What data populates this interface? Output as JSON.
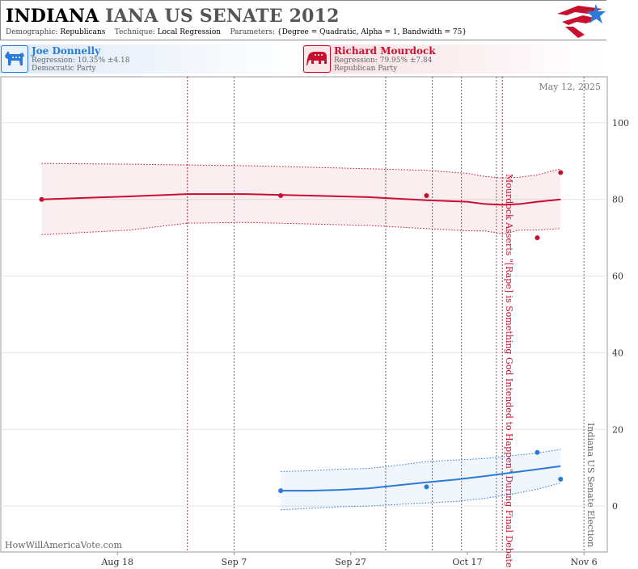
{
  "header": {
    "state": "INDIANA",
    "title_rest": "IANA US SENATE 2012",
    "demographic_label": "Demographic:",
    "demographic_value": "Republicans",
    "technique_label": "Technique:",
    "technique_value": "Local Regression",
    "parameters_label": "Parameters:",
    "parameters_value": "{Degree = Quadratic, Alpha = 1, Bandwidth = 75}",
    "logo": "star-flag-logo"
  },
  "candidates": [
    {
      "name": "Joe Donnelly",
      "regression": "Regression: 10.35% ±4.18",
      "party": "Democratic Party",
      "icon": "donkey-icon",
      "color": "#2a7bd8"
    },
    {
      "name": "Richard Mourdock",
      "regression": "Regression: 79.95% ±7.84",
      "party": "Republican Party",
      "icon": "elephant-icon",
      "color": "#c8102e"
    }
  ],
  "watermark": "HowWillAmericaVote.com",
  "date_stamp": "May 12, 2025",
  "chart_data": {
    "type": "line",
    "x_ticks": [
      "Aug 18",
      "Sep 7",
      "Sep 27",
      "Oct 17",
      "Nov 6"
    ],
    "xlim": [
      "2012-07-29",
      "2012-11-10"
    ],
    "ylim": [
      -12,
      112
    ],
    "y_ticks": [
      0,
      20,
      40,
      60,
      80,
      100
    ],
    "grid": true,
    "series": [
      {
        "name": "Richard Mourdock",
        "color": "#c8102e",
        "points": [
          {
            "x": "2012-08-05",
            "y": 80
          },
          {
            "x": "2012-09-15",
            "y": 81
          },
          {
            "x": "2012-10-10",
            "y": 81
          },
          {
            "x": "2012-10-29",
            "y": 70
          },
          {
            "x": "2012-11-02",
            "y": 87
          }
        ],
        "trend": [
          {
            "x": "2012-08-05",
            "y": 80.0,
            "lo": 70.8,
            "hi": 89.4
          },
          {
            "x": "2012-08-20",
            "y": 80.8,
            "lo": 72.0,
            "hi": 89.2
          },
          {
            "x": "2012-08-30",
            "y": 81.4,
            "lo": 73.8,
            "hi": 89.0
          },
          {
            "x": "2012-09-09",
            "y": 81.4,
            "lo": 74.0,
            "hi": 88.8
          },
          {
            "x": "2012-09-20",
            "y": 81.0,
            "lo": 73.6,
            "hi": 88.4
          },
          {
            "x": "2012-09-30",
            "y": 80.6,
            "lo": 73.2,
            "hi": 88.0
          },
          {
            "x": "2012-10-10",
            "y": 79.8,
            "lo": 72.4,
            "hi": 87.6
          },
          {
            "x": "2012-10-17",
            "y": 79.4,
            "lo": 71.8,
            "hi": 86.8
          },
          {
            "x": "2012-10-20",
            "y": 78.8,
            "lo": 71.8,
            "hi": 86.0
          },
          {
            "x": "2012-10-23",
            "y": 78.6,
            "lo": 71.0,
            "hi": 85.6
          },
          {
            "x": "2012-10-26",
            "y": 78.8,
            "lo": 72.0,
            "hi": 85.8
          },
          {
            "x": "2012-10-29",
            "y": 79.4,
            "lo": 72.0,
            "hi": 86.4
          },
          {
            "x": "2012-11-02",
            "y": 80.0,
            "lo": 72.4,
            "hi": 88.0
          }
        ]
      },
      {
        "name": "Joe Donnelly",
        "color": "#2a7bd8",
        "points": [
          {
            "x": "2012-09-15",
            "y": 4
          },
          {
            "x": "2012-10-10",
            "y": 5
          },
          {
            "x": "2012-10-29",
            "y": 14
          },
          {
            "x": "2012-11-02",
            "y": 7
          }
        ],
        "trend": [
          {
            "x": "2012-09-15",
            "y": 4.0,
            "lo": -1.0,
            "hi": 9.0
          },
          {
            "x": "2012-09-20",
            "y": 4.0,
            "lo": -0.6,
            "hi": 9.2
          },
          {
            "x": "2012-09-25",
            "y": 4.2,
            "lo": -0.2,
            "hi": 9.6
          },
          {
            "x": "2012-09-30",
            "y": 4.6,
            "lo": 0.0,
            "hi": 9.8
          },
          {
            "x": "2012-10-05",
            "y": 5.4,
            "lo": 0.4,
            "hi": 10.6
          },
          {
            "x": "2012-10-10",
            "y": 6.2,
            "lo": 0.8,
            "hi": 11.6
          },
          {
            "x": "2012-10-15",
            "y": 6.9,
            "lo": 1.2,
            "hi": 12.0
          },
          {
            "x": "2012-10-20",
            "y": 7.8,
            "lo": 2.0,
            "hi": 12.4
          },
          {
            "x": "2012-10-25",
            "y": 8.8,
            "lo": 3.2,
            "hi": 13.2
          },
          {
            "x": "2012-10-29",
            "y": 9.6,
            "lo": 4.4,
            "hi": 13.8
          },
          {
            "x": "2012-11-02",
            "y": 10.4,
            "lo": 6.0,
            "hi": 14.8
          }
        ]
      }
    ],
    "events": [
      {
        "x": "2012-08-30",
        "color": "#c8102e"
      },
      {
        "x": "2012-09-07",
        "color": "#2a7bd8"
      },
      {
        "x": "2012-10-03",
        "color": "#666666"
      },
      {
        "x": "2012-10-11",
        "color": "#666666"
      },
      {
        "x": "2012-10-16",
        "color": "#666666"
      },
      {
        "x": "2012-10-22",
        "color": "#666666"
      },
      {
        "x": "2012-10-23",
        "color": "#c8102e",
        "label": "Mourdock Asserts \"[Rape] is Something God Intended to Happen\" During Final Debate"
      },
      {
        "x": "2012-11-06",
        "color": "#666666",
        "label": "Indiana US Senate Election"
      }
    ]
  }
}
